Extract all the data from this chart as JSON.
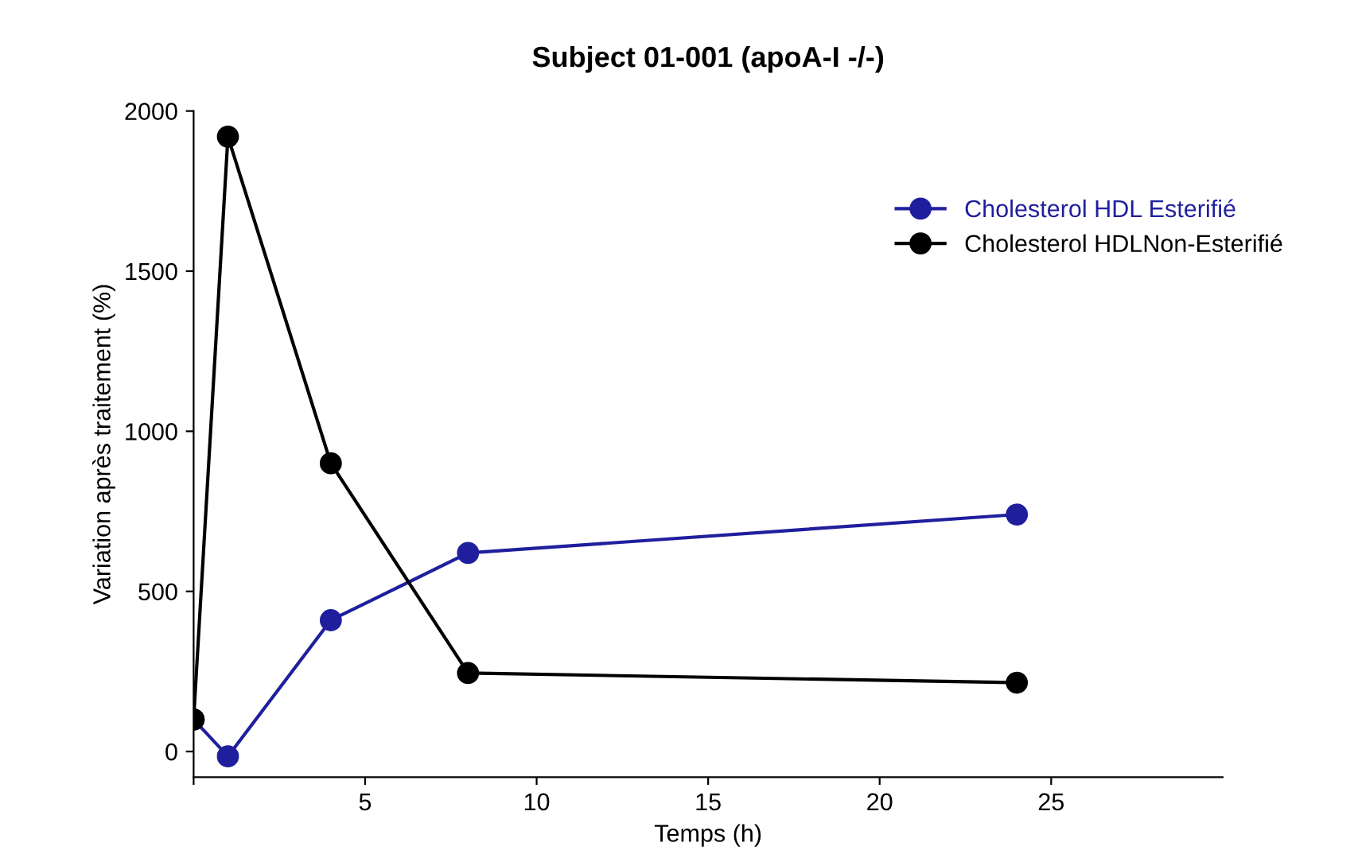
{
  "chart_data": {
    "type": "line",
    "title": "Subject 01-001 (apoA-I -/-)",
    "xlabel": "Temps (h)",
    "ylabel": "Variation après traitement (%)",
    "x": [
      0,
      1,
      4,
      8,
      24
    ],
    "series": [
      {
        "name": "Cholesterol HDL Esterifié",
        "color": "#1f1f9e",
        "values": [
          100,
          -15,
          410,
          620,
          740
        ]
      },
      {
        "name": "Cholesterol HDLNon-Esterifié",
        "color": "#000000",
        "values": [
          100,
          1920,
          900,
          245,
          215
        ]
      }
    ],
    "xlim": [
      0,
      30
    ],
    "xticks": [
      {
        "value": 0,
        "label": null
      },
      5,
      10,
      15,
      20,
      25
    ],
    "ylim": [
      -80,
      2000
    ],
    "yticks": [
      0,
      500,
      1000,
      1500,
      2000
    ],
    "grid": false,
    "legend": "top right",
    "marker": "circle",
    "line_style": "solid"
  }
}
